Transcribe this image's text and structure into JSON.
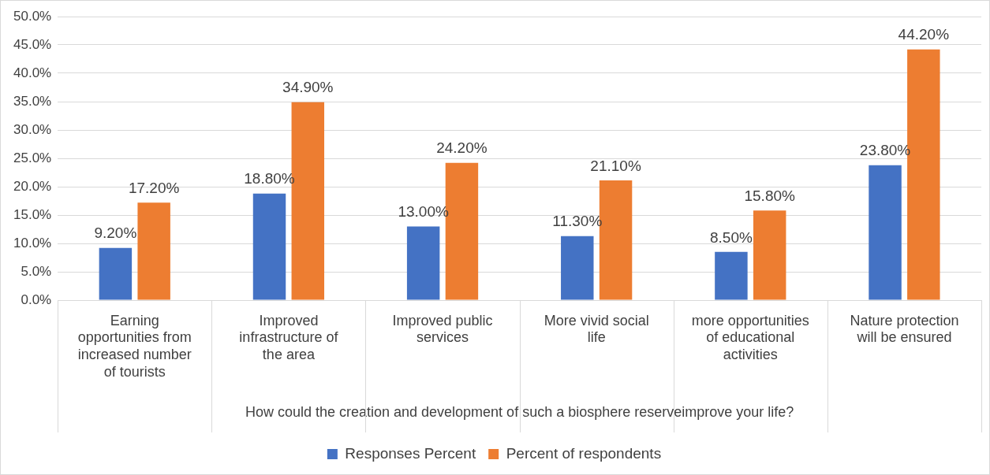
{
  "chart_data": {
    "type": "bar",
    "xlabel": "How could the creation and development of such a biosphere reserveimprove your life?",
    "categories": [
      "Earning opportunities from increased number of tourists",
      "Improved infrastructure of the area",
      "Improved public services",
      "More vivid social life",
      "more opportunities of educational activities",
      "Nature protection will be ensured"
    ],
    "series": [
      {
        "name": "Responses Percent",
        "color": "#4472c4",
        "values": [
          9.2,
          18.8,
          13.0,
          11.3,
          8.5,
          23.8
        ],
        "value_labels": [
          "9.20%",
          "18.80%",
          "13.00%",
          "11.30%",
          "8.50%",
          "23.80%"
        ]
      },
      {
        "name": "Percent of respondents",
        "color": "#ed7d31",
        "values": [
          17.2,
          34.9,
          24.2,
          21.1,
          15.8,
          44.2
        ],
        "value_labels": [
          "17.20%",
          "34.90%",
          "24.20%",
          "21.10%",
          "15.80%",
          "44.20%"
        ]
      }
    ],
    "ylim": [
      0,
      50
    ],
    "yticks": [
      {
        "value": 0,
        "label": "0.0%"
      },
      {
        "value": 5,
        "label": "5.0%"
      },
      {
        "value": 10,
        "label": "10.0%"
      },
      {
        "value": 15,
        "label": "15.0%"
      },
      {
        "value": 20,
        "label": "20.0%"
      },
      {
        "value": 25,
        "label": "25.0%"
      },
      {
        "value": 30,
        "label": "30.0%"
      },
      {
        "value": 35,
        "label": "35.0%"
      },
      {
        "value": 40,
        "label": "40.0%"
      },
      {
        "value": 45,
        "label": "45.0%"
      },
      {
        "value": 50,
        "label": "50.0%"
      }
    ],
    "grid": "y",
    "legend": "bottom"
  }
}
